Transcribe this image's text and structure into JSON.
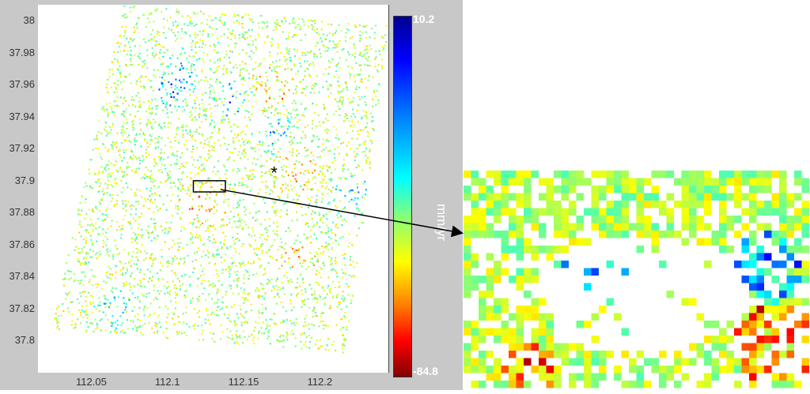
{
  "chart_data": {
    "type": "scatter",
    "title": "",
    "xlabel": "",
    "ylabel": "",
    "xlim": [
      112.015,
      112.245
    ],
    "ylim": [
      37.78,
      38.01
    ],
    "x_ticks": [
      "112.05",
      "112.1",
      "112.15",
      "112.2"
    ],
    "y_ticks": [
      "38",
      "37.98",
      "37.96",
      "37.94",
      "37.92",
      "37.9",
      "37.88",
      "37.86",
      "37.84",
      "37.82",
      "37.8"
    ],
    "colorbar": {
      "max_label": "10.2",
      "min_label": "-84.8",
      "unit": "mm/yr",
      "min": -84.8,
      "max": 10.2
    },
    "marker": {
      "symbol": "*",
      "x": 112.17,
      "y": 37.905
    },
    "zoom_box": {
      "x_range": [
        112.117,
        112.138
      ],
      "y_range": [
        37.893,
        37.9
      ]
    },
    "colors": {
      "background_panel": "#c8c8c8",
      "plot_background": "#ffffff",
      "arrow": "#000000"
    }
  }
}
